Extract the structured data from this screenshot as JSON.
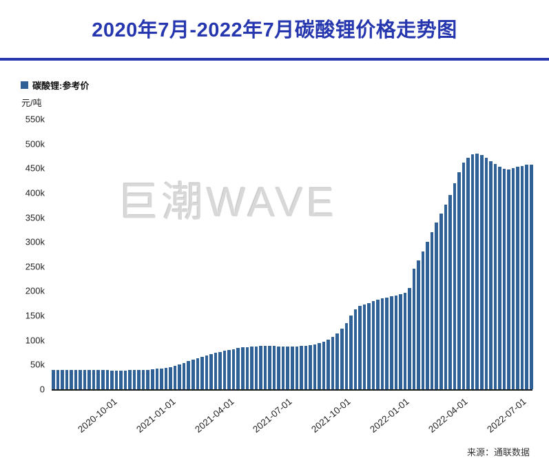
{
  "title": "2020年7月-2022年7月碳酸锂价格走势图",
  "watermark": "巨潮WAVE",
  "source": "来源：通联数据",
  "colors": {
    "title_blue": "#2636ae",
    "bar_blue": "#2f6096",
    "watermark_gray": "#d8d8d8",
    "axis_text": "#222222"
  },
  "chart_data": {
    "type": "bar",
    "title": "2020年7月-2022年7月碳酸锂价格走势图",
    "legend": "碳酸锂:参考价",
    "ylabel": "元/吨",
    "ylim": [
      0,
      550000
    ],
    "grid": false,
    "legend_position": "top-left",
    "yticks": [
      "0",
      "50k",
      "100k",
      "150k",
      "200k",
      "250k",
      "300k",
      "350k",
      "400k",
      "450k",
      "500k",
      "550k"
    ],
    "x_ticks": [
      {
        "index": 13,
        "label": "2020-10-01"
      },
      {
        "index": 26,
        "label": "2021-01-01"
      },
      {
        "index": 39,
        "label": "2021-04-01"
      },
      {
        "index": 52,
        "label": "2021-07-01"
      },
      {
        "index": 65,
        "label": "2021-10-01"
      },
      {
        "index": 78,
        "label": "2022-01-01"
      },
      {
        "index": 91,
        "label": "2022-04-01"
      },
      {
        "index": 104,
        "label": "2022-07-01"
      }
    ],
    "values": [
      40000,
      40000,
      40000,
      39500,
      39500,
      39500,
      39000,
      39000,
      39000,
      38800,
      38800,
      38800,
      38800,
      38500,
      38500,
      38500,
      38500,
      38800,
      39000,
      39200,
      39500,
      40000,
      40800,
      41500,
      42500,
      43500,
      45500,
      48000,
      51000,
      54000,
      57000,
      60000,
      63000,
      66000,
      69000,
      71500,
      74000,
      76000,
      78000,
      80000,
      82000,
      84000,
      85000,
      86000,
      87000,
      87500,
      88000,
      88000,
      88000,
      88000,
      87500,
      87000,
      87000,
      87000,
      87500,
      88000,
      88500,
      90000,
      91500,
      93500,
      96500,
      101000,
      107000,
      114000,
      123000,
      135000,
      150000,
      163000,
      170000,
      173000,
      176000,
      179000,
      182000,
      185000,
      187000,
      189000,
      191000,
      193000,
      196000,
      206000,
      245000,
      263000,
      281000,
      300000,
      320000,
      340000,
      358000,
      376000,
      396000,
      419000,
      442000,
      462000,
      472000,
      478000,
      480000,
      477000,
      471000,
      465000,
      459000,
      453000,
      449000,
      448000,
      451000,
      453000,
      455000,
      457000,
      458000
    ]
  }
}
